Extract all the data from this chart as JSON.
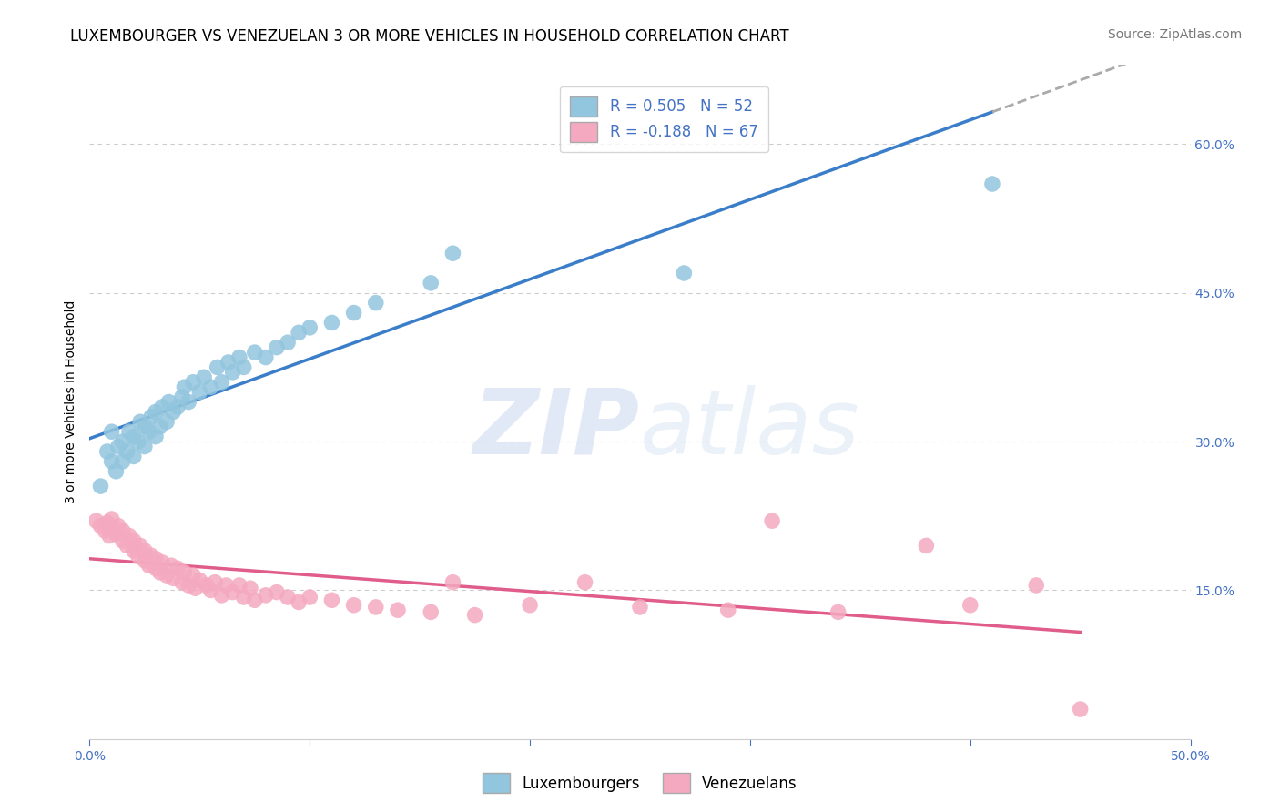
{
  "title": "LUXEMBOURGER VS VENEZUELAN 3 OR MORE VEHICLES IN HOUSEHOLD CORRELATION CHART",
  "source": "Source: ZipAtlas.com",
  "ylabel": "3 or more Vehicles in Household",
  "xmin": 0.0,
  "xmax": 0.5,
  "ymin": 0.0,
  "ymax": 0.68,
  "xticks": [
    0.0,
    0.1,
    0.2,
    0.3,
    0.4,
    0.5
  ],
  "xtick_labels": [
    "0.0%",
    "",
    "",
    "",
    "",
    "50.0%"
  ],
  "yticks": [
    0.15,
    0.3,
    0.45,
    0.6
  ],
  "ytick_labels": [
    "15.0%",
    "30.0%",
    "45.0%",
    "60.0%"
  ],
  "blue_color": "#92c5de",
  "pink_color": "#f4a9c0",
  "blue_line_color": "#3a7dc9",
  "pink_line_color": "#e05c8a",
  "dashed_color": "#aaaaaa",
  "axis_color": "#4472c4",
  "R_blue": 0.505,
  "N_blue": 52,
  "R_pink": -0.188,
  "N_pink": 67,
  "blue_scatter_x": [
    0.005,
    0.008,
    0.01,
    0.01,
    0.012,
    0.013,
    0.015,
    0.015,
    0.017,
    0.018,
    0.02,
    0.02,
    0.022,
    0.023,
    0.025,
    0.025,
    0.027,
    0.028,
    0.03,
    0.03,
    0.032,
    0.033,
    0.035,
    0.036,
    0.038,
    0.04,
    0.042,
    0.043,
    0.045,
    0.047,
    0.05,
    0.052,
    0.055,
    0.058,
    0.06,
    0.063,
    0.065,
    0.068,
    0.07,
    0.075,
    0.08,
    0.085,
    0.09,
    0.095,
    0.1,
    0.11,
    0.12,
    0.13,
    0.155,
    0.165,
    0.27,
    0.41
  ],
  "blue_scatter_y": [
    0.255,
    0.29,
    0.28,
    0.31,
    0.27,
    0.295,
    0.28,
    0.3,
    0.29,
    0.31,
    0.285,
    0.305,
    0.3,
    0.32,
    0.295,
    0.315,
    0.31,
    0.325,
    0.305,
    0.33,
    0.315,
    0.335,
    0.32,
    0.34,
    0.33,
    0.335,
    0.345,
    0.355,
    0.34,
    0.36,
    0.35,
    0.365,
    0.355,
    0.375,
    0.36,
    0.38,
    0.37,
    0.385,
    0.375,
    0.39,
    0.385,
    0.395,
    0.4,
    0.41,
    0.415,
    0.42,
    0.43,
    0.44,
    0.46,
    0.49,
    0.47,
    0.56
  ],
  "pink_scatter_x": [
    0.003,
    0.005,
    0.007,
    0.008,
    0.009,
    0.01,
    0.01,
    0.012,
    0.013,
    0.015,
    0.015,
    0.017,
    0.018,
    0.02,
    0.02,
    0.022,
    0.023,
    0.025,
    0.025,
    0.027,
    0.028,
    0.03,
    0.03,
    0.032,
    0.033,
    0.035,
    0.037,
    0.038,
    0.04,
    0.042,
    0.043,
    0.045,
    0.047,
    0.048,
    0.05,
    0.053,
    0.055,
    0.057,
    0.06,
    0.062,
    0.065,
    0.068,
    0.07,
    0.073,
    0.075,
    0.08,
    0.085,
    0.09,
    0.095,
    0.1,
    0.11,
    0.12,
    0.13,
    0.14,
    0.155,
    0.165,
    0.175,
    0.2,
    0.225,
    0.25,
    0.29,
    0.31,
    0.34,
    0.38,
    0.4,
    0.43,
    0.45
  ],
  "pink_scatter_y": [
    0.22,
    0.215,
    0.21,
    0.218,
    0.205,
    0.213,
    0.222,
    0.207,
    0.215,
    0.2,
    0.21,
    0.195,
    0.205,
    0.19,
    0.2,
    0.185,
    0.195,
    0.18,
    0.19,
    0.175,
    0.185,
    0.172,
    0.182,
    0.168,
    0.178,
    0.165,
    0.175,
    0.162,
    0.172,
    0.158,
    0.168,
    0.155,
    0.165,
    0.152,
    0.16,
    0.155,
    0.15,
    0.158,
    0.145,
    0.155,
    0.148,
    0.155,
    0.143,
    0.152,
    0.14,
    0.145,
    0.148,
    0.143,
    0.138,
    0.143,
    0.14,
    0.135,
    0.133,
    0.13,
    0.128,
    0.158,
    0.125,
    0.135,
    0.158,
    0.133,
    0.13,
    0.22,
    0.128,
    0.195,
    0.135,
    0.155,
    0.03
  ],
  "watermark_zip": "ZIP",
  "watermark_atlas": "atlas",
  "title_fontsize": 12,
  "axis_label_fontsize": 10,
  "tick_fontsize": 10,
  "legend_fontsize": 12,
  "source_fontsize": 10,
  "background_color": "#ffffff",
  "grid_color": "#cccccc"
}
